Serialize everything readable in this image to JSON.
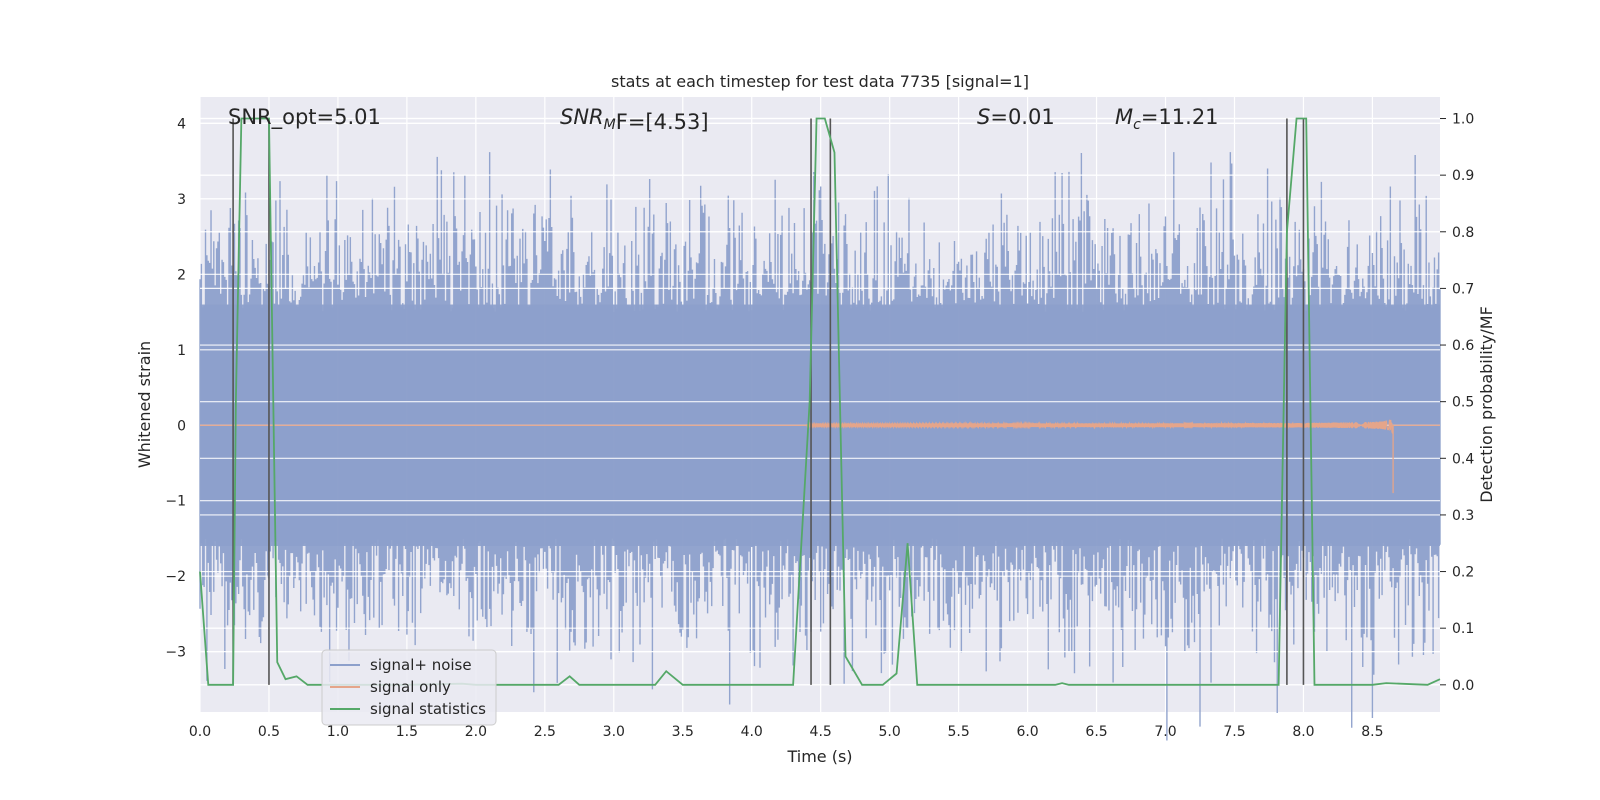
{
  "chart_data": {
    "type": "line",
    "title": "stats at each timestep for test data 7735 [signal=1]",
    "xlabel": "Time (s)",
    "ylabel": "Whitened strain",
    "y2label": "Detection probability/MF",
    "xlim": [
      0.0,
      8.99
    ],
    "ylim": [
      -3.8,
      4.35
    ],
    "y2lim": [
      -0.048,
      1.038
    ],
    "xticks": [
      0.0,
      0.5,
      1.0,
      1.5,
      2.0,
      2.5,
      3.0,
      3.5,
      4.0,
      4.5,
      5.0,
      5.5,
      6.0,
      6.5,
      7.0,
      7.5,
      8.0,
      8.5
    ],
    "xtick_labels": [
      "0.0",
      "0.5",
      "1.0",
      "1.5",
      "2.0",
      "2.5",
      "3.0",
      "3.5",
      "4.0",
      "4.5",
      "5.0",
      "5.5",
      "6.0",
      "6.5",
      "7.0",
      "7.5",
      "8.0",
      "8.5"
    ],
    "yticks": [
      -3,
      -2,
      -1,
      0,
      1,
      2,
      3,
      4
    ],
    "ytick_labels": [
      "−3",
      "−2",
      "−1",
      "0",
      "1",
      "2",
      "3",
      "4"
    ],
    "y2ticks": [
      0.0,
      0.1,
      0.2,
      0.3,
      0.4,
      0.5,
      0.6,
      0.7,
      0.8,
      0.9,
      1.0
    ],
    "y2tick_labels": [
      "0.0",
      "0.1",
      "0.2",
      "0.3",
      "0.4",
      "0.5",
      "0.6",
      "0.7",
      "0.8",
      "0.9",
      "1.0"
    ],
    "annotations": {
      "snr_opt": "SNR_opt=5.01",
      "snr_mf_main": "SNR",
      "snr_mf_sub": "M",
      "snr_mf_rest": "F=[4.53]",
      "s_main": "S",
      "s_rest": "=0.01",
      "mc_main": "M",
      "mc_sub": "c",
      "mc_rest": "=11.21"
    },
    "legend": {
      "placement": "lower-left",
      "entries": [
        "signal+ noise",
        "signal only",
        "signal statistics"
      ]
    },
    "colors": {
      "noise": "#8da0cb",
      "signal": "#e5a58a",
      "stats": "#55a868",
      "vline": "#555555",
      "background": "#eaeaf2",
      "grid": "#ffffff"
    },
    "noise_series": {
      "name": "signal+ noise",
      "t_start": 0.0,
      "t_end": 8.99,
      "samples": 900,
      "typical_envelope": [
        -1.6,
        1.6
      ],
      "y_max": 3.62,
      "y_min": -3.7
    },
    "signal_series": {
      "name": "signal only",
      "t_start": 0.0,
      "t_end": 8.99,
      "chirp_start": 4.4,
      "chirp_end": 8.65,
      "peak_amplitude": 0.7,
      "merger_time": 8.65
    },
    "stats_series": {
      "name": "signal statistics",
      "x": [
        0.0,
        0.06,
        0.1,
        0.18,
        0.24,
        0.26,
        0.3,
        0.4,
        0.5,
        0.56,
        0.62,
        0.7,
        0.78,
        1.0,
        1.5,
        1.9,
        2.0,
        2.6,
        2.68,
        2.75,
        3.3,
        3.38,
        3.5,
        4.3,
        4.42,
        4.47,
        4.53,
        4.6,
        4.68,
        4.8,
        4.95,
        5.05,
        5.13,
        5.2,
        5.3,
        6.2,
        6.25,
        6.3,
        8.5,
        8.6,
        8.9,
        8.99
      ],
      "y": [
        0.2,
        0.0,
        0.0,
        0.0,
        0.0,
        0.5,
        1.0,
        1.0,
        1.0,
        0.04,
        0.01,
        0.015,
        0.0,
        0.0,
        0.0,
        0.002,
        0.0,
        0.0,
        0.015,
        0.0,
        0.0,
        0.024,
        0.0,
        0.0,
        0.5,
        1.0,
        1.0,
        0.94,
        0.05,
        0.0,
        0.0,
        0.02,
        0.25,
        0.0,
        0.0,
        0.0,
        0.003,
        0.0,
        0.0,
        0.003,
        0.0,
        0.01
      ]
    },
    "stats_series_tail": {
      "x": [
        7.82,
        7.88,
        7.95,
        8.02,
        8.08
      ],
      "y": [
        0.0,
        0.8,
        1.0,
        1.0,
        0.0
      ]
    },
    "vlines": [
      {
        "x": 0.24,
        "y2": [
          0.0,
          1.0
        ]
      },
      {
        "x": 0.5,
        "y2": [
          0.0,
          1.0
        ]
      },
      {
        "x": 4.43,
        "y2": [
          0.0,
          1.0
        ]
      },
      {
        "x": 4.57,
        "y2": [
          0.0,
          1.0
        ]
      },
      {
        "x": 7.88,
        "y2": [
          0.0,
          1.0
        ]
      },
      {
        "x": 8.0,
        "y2": [
          0.0,
          1.0
        ]
      }
    ]
  }
}
